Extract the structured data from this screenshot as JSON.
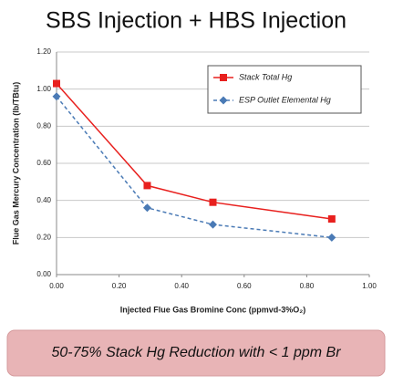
{
  "chart_data": {
    "type": "line",
    "title": "SBS Injection + HBS Injection",
    "x_label": "Injected Flue Gas Bromine Conc (ppmvd-3%O₂)",
    "y_label": "Flue Gas Mercury Concentration (lb/TBtu)",
    "x": [
      0,
      0.29,
      0.5,
      0.88
    ],
    "series": [
      {
        "name": "Stack Total Hg",
        "color": "#e8201e",
        "marker": "square",
        "dash": false,
        "values": [
          1.03,
          0.48,
          0.39,
          0.3
        ]
      },
      {
        "name": "ESP Outlet Elemental Hg",
        "color": "#4a7ab5",
        "marker": "diamond",
        "dash": true,
        "values": [
          0.96,
          0.36,
          0.27,
          0.2
        ]
      }
    ],
    "xlim": [
      0,
      1
    ],
    "ylim": [
      0,
      1.2
    ],
    "xticks": [
      {
        "value": 0,
        "label": "0.00"
      },
      {
        "value": 0.2,
        "label": "0.20"
      },
      {
        "value": 0.4,
        "label": "0.40"
      },
      {
        "value": 0.6,
        "label": "0.60"
      },
      {
        "value": 0.8,
        "label": "0.80"
      },
      {
        "value": 1,
        "label": "1.00"
      }
    ],
    "yticks": [
      {
        "value": 0,
        "label": "0.00"
      },
      {
        "value": 0.2,
        "label": "0.20"
      },
      {
        "value": 0.4,
        "label": "0.40"
      },
      {
        "value": 0.6,
        "label": "0.60"
      },
      {
        "value": 0.8,
        "label": "0.80"
      },
      {
        "value": 1,
        "label": "1.00"
      },
      {
        "value": 1.2,
        "label": "1.20"
      }
    ],
    "grid": true,
    "legend": "upper right",
    "annotation": "50-75% Stack Hg Reduction with < 1 ppm Br"
  }
}
